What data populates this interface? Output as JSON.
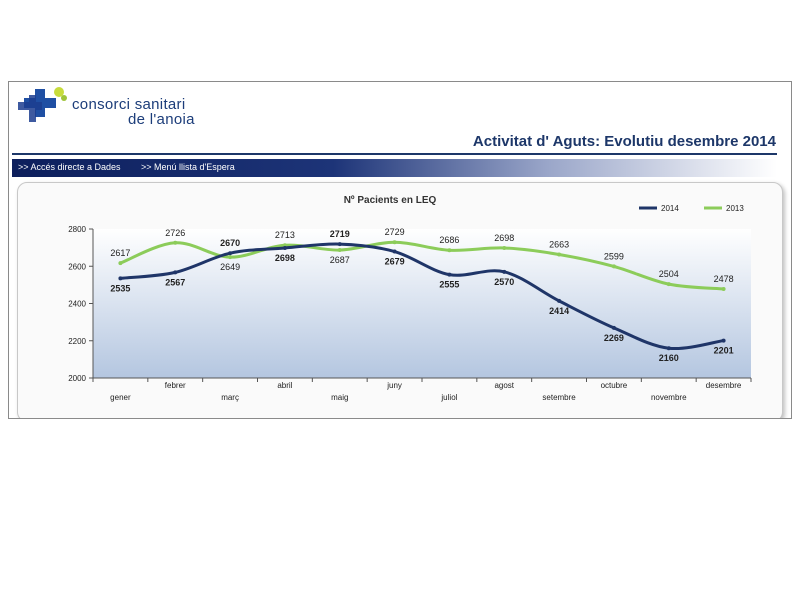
{
  "header": {
    "logo_line1": "consorci sanitari",
    "logo_line2": "de l'anoia",
    "title": "Activitat d' Aguts: Evolutiu desembre 2014"
  },
  "nav": {
    "link1": ">> Accés directe a Dades",
    "link2": ">> Menú llista d'Espera"
  },
  "colors": {
    "series_2014": "#1f3568",
    "series_2013": "#8ccc5a",
    "title_blue": "#1d3769"
  },
  "chart_data": {
    "type": "line",
    "title": "Nº Pacients en LEQ",
    "xlabel": "",
    "ylabel": "",
    "ylim": [
      2000,
      2800
    ],
    "yticks": [
      2000,
      2200,
      2400,
      2600,
      2800
    ],
    "grid": false,
    "legend_position": "top-right",
    "categories": [
      "gener",
      "febrer",
      "març",
      "abril",
      "maig",
      "juny",
      "juliol",
      "agost",
      "setembre",
      "octubre",
      "novembre",
      "desembre"
    ],
    "series": [
      {
        "name": "2014",
        "values": [
          2535,
          2567,
          2670,
          2698,
          2719,
          2679,
          2555,
          2570,
          2414,
          2269,
          2160,
          2201
        ]
      },
      {
        "name": "2013",
        "values": [
          2617,
          2726,
          2649,
          2713,
          2687,
          2729,
          2686,
          2698,
          2663,
          2599,
          2504,
          2478
        ]
      }
    ]
  }
}
